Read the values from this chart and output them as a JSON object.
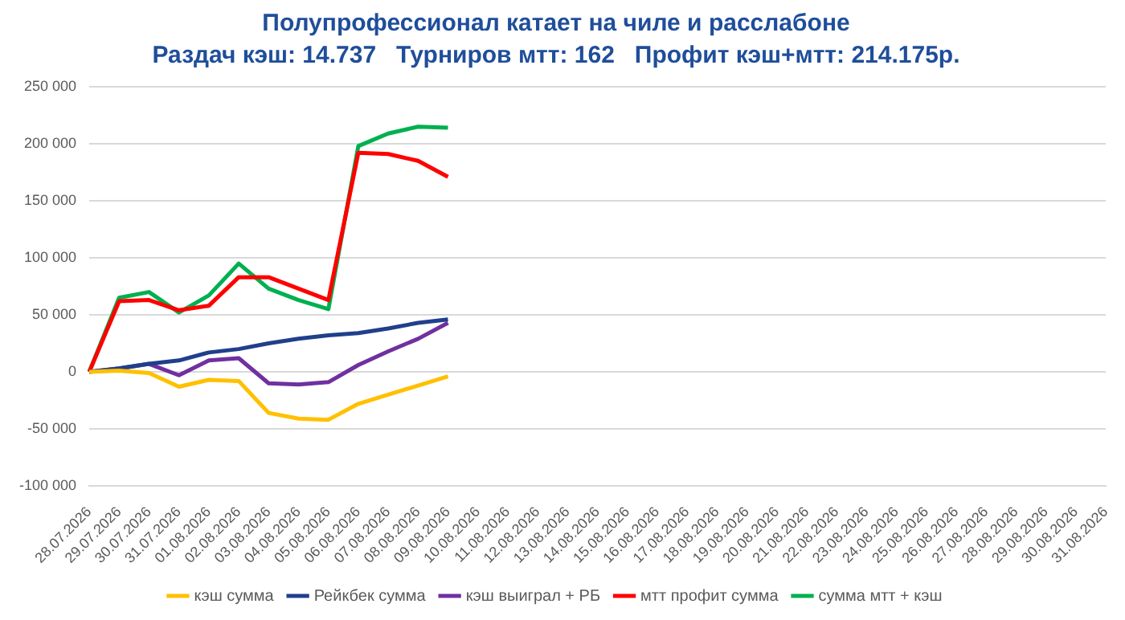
{
  "chart_data": {
    "type": "line",
    "title": "Полупрофессионал катает на чиле и расслабоне",
    "subtitle": "Раздач кэш: 14.737   Турниров мтт: 162   Профит кэш+мтт: 214.175р.",
    "categories": [
      "28.07.2026",
      "29.07.2026",
      "30.07.2026",
      "31.07.2026",
      "01.08.2026",
      "02.08.2026",
      "03.08.2026",
      "04.08.2026",
      "05.08.2026",
      "06.08.2026",
      "07.08.2026",
      "08.08.2026",
      "09.08.2026",
      "10.08.2026",
      "11.08.2026",
      "12.08.2026",
      "13.08.2026",
      "14.08.2026",
      "15.08.2026",
      "16.08.2026",
      "17.08.2026",
      "18.08.2026",
      "19.08.2026",
      "20.08.2026",
      "21.08.2026",
      "22.08.2026",
      "23.08.2026",
      "24.08.2026",
      "25.08.2026",
      "26.08.2026",
      "27.08.2026",
      "28.08.2026",
      "29.08.2026",
      "30.08.2026",
      "31.08.2026"
    ],
    "series": [
      {
        "name": "кэш сумма",
        "color": "#ffc000",
        "values": [
          0,
          1000,
          -1000,
          -13000,
          -7000,
          -8000,
          -36000,
          -41000,
          -42000,
          -28000,
          -20000,
          -12000,
          -4000,
          null,
          null,
          null,
          null,
          null,
          null,
          null,
          null,
          null,
          null,
          null,
          null,
          null,
          null,
          null,
          null,
          null,
          null,
          null,
          null,
          null,
          null
        ]
      },
      {
        "name": "Рейкбек сумма",
        "color": "#203f8c",
        "values": [
          0,
          3000,
          7000,
          10000,
          17000,
          20000,
          25000,
          29000,
          32000,
          34000,
          38000,
          43000,
          46000,
          null,
          null,
          null,
          null,
          null,
          null,
          null,
          null,
          null,
          null,
          null,
          null,
          null,
          null,
          null,
          null,
          null,
          null,
          null,
          null,
          null,
          null
        ]
      },
      {
        "name": "кэш выиграл + РБ",
        "color": "#7030a0",
        "values": [
          0,
          3000,
          7000,
          -3000,
          10000,
          12000,
          -10000,
          -11000,
          -9000,
          6000,
          18000,
          29000,
          43000,
          null,
          null,
          null,
          null,
          null,
          null,
          null,
          null,
          null,
          null,
          null,
          null,
          null,
          null,
          null,
          null,
          null,
          null,
          null,
          null,
          null,
          null
        ]
      },
      {
        "name": "мтт профит сумма",
        "color": "#ff0000",
        "values": [
          0,
          62000,
          63000,
          54000,
          58000,
          83000,
          83000,
          73000,
          63000,
          192000,
          191000,
          185000,
          171000,
          null,
          null,
          null,
          null,
          null,
          null,
          null,
          null,
          null,
          null,
          null,
          null,
          null,
          null,
          null,
          null,
          null,
          null,
          null,
          null,
          null,
          null
        ]
      },
      {
        "name": "сумма мтт + кэш",
        "color": "#00b050",
        "values": [
          0,
          65000,
          70000,
          52000,
          67000,
          95000,
          73000,
          63000,
          55000,
          198000,
          209000,
          215000,
          214000,
          null,
          null,
          null,
          null,
          null,
          null,
          null,
          null,
          null,
          null,
          null,
          null,
          null,
          null,
          null,
          null,
          null,
          null,
          null,
          null,
          null,
          null
        ]
      }
    ],
    "ylim": [
      -100000,
      250000
    ],
    "yticks": [
      {
        "value": -100000,
        "label": "-100 000"
      },
      {
        "value": -50000,
        "label": "-50 000"
      },
      {
        "value": 0,
        "label": "0"
      },
      {
        "value": 50000,
        "label": "50 000"
      },
      {
        "value": 100000,
        "label": "100 000"
      },
      {
        "value": 150000,
        "label": "150 000"
      },
      {
        "value": 200000,
        "label": "200 000"
      },
      {
        "value": 250000,
        "label": "250 000"
      }
    ],
    "grid": "y",
    "legend": "bottom",
    "marker": "none",
    "line_style": "solid"
  }
}
